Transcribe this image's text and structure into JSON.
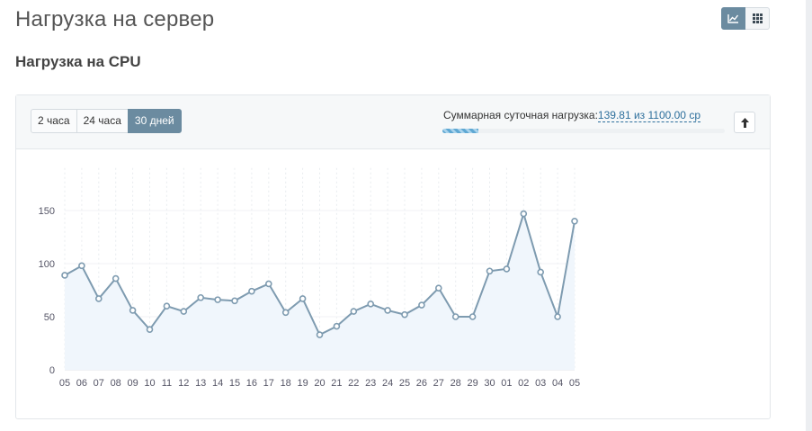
{
  "page": {
    "title": "Нагрузка на сервер",
    "section_title": "Нагрузка на CPU"
  },
  "view_switch": [
    {
      "icon": "line-chart-icon",
      "active": true
    },
    {
      "icon": "grid-icon",
      "active": false
    }
  ],
  "range_tabs": [
    {
      "label": "2 часа",
      "active": false
    },
    {
      "label": "24 часа",
      "active": false
    },
    {
      "label": "30 дней",
      "active": true
    }
  ],
  "summary": {
    "label": "Суммарная суточная нагрузка:",
    "value": "139.81 из 1100.00 cp",
    "progress_fraction": 0.127
  },
  "collapse_icon": "arrow-up-icon",
  "colors": {
    "accent": "#6b8ba0",
    "line": "#7e9bb0",
    "area": "#f0f6fc",
    "link": "#2d6f9c"
  },
  "chart_data": {
    "type": "line",
    "x": [
      "05",
      "06",
      "07",
      "08",
      "09",
      "10",
      "11",
      "12",
      "13",
      "14",
      "15",
      "16",
      "17",
      "18",
      "19",
      "20",
      "21",
      "22",
      "23",
      "24",
      "25",
      "26",
      "27",
      "28",
      "29",
      "30",
      "01",
      "02",
      "03",
      "04",
      "05"
    ],
    "values": [
      89,
      98,
      67,
      86,
      56,
      38,
      60,
      55,
      68,
      66,
      65,
      74,
      81,
      54,
      67,
      33,
      41,
      55,
      62,
      56,
      52,
      61,
      77,
      50,
      50,
      93,
      95,
      147,
      92,
      50,
      140
    ],
    "y_ticks": [
      "0",
      "50",
      "100",
      "150"
    ],
    "ylim": [
      0,
      190
    ],
    "grid": true
  }
}
